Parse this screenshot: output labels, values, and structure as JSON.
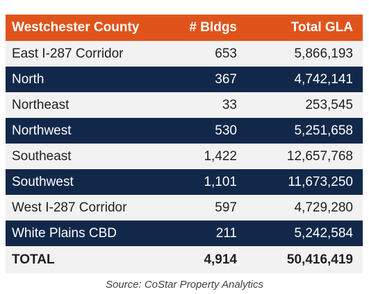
{
  "table": {
    "header": {
      "name": "Westchester County",
      "bldgs": "# Bldgs",
      "gla": "Total GLA"
    },
    "rows": [
      {
        "name": "East I-287 Corridor",
        "bldgs": "653",
        "gla": "5,866,193"
      },
      {
        "name": "North",
        "bldgs": "367",
        "gla": "4,742,141"
      },
      {
        "name": "Northeast",
        "bldgs": "33",
        "gla": "253,545"
      },
      {
        "name": "Northwest",
        "bldgs": "530",
        "gla": "5,251,658"
      },
      {
        "name": "Southeast",
        "bldgs": "1,422",
        "gla": "12,657,768"
      },
      {
        "name": "Southwest",
        "bldgs": "1,101",
        "gla": "11,673,250"
      },
      {
        "name": "West I-287 Corridor",
        "bldgs": "597",
        "gla": "4,729,280"
      },
      {
        "name": "White Plains CBD",
        "bldgs": "211",
        "gla": "5,242,584"
      }
    ],
    "total": {
      "name": "TOTAL",
      "bldgs": "4,914",
      "gla": "50,416,419"
    }
  },
  "source": "Source:  CoStar Property Analytics",
  "colors": {
    "header": "#e0541b",
    "dark_row": "#12284a",
    "light_row": "#f2f2f2"
  }
}
